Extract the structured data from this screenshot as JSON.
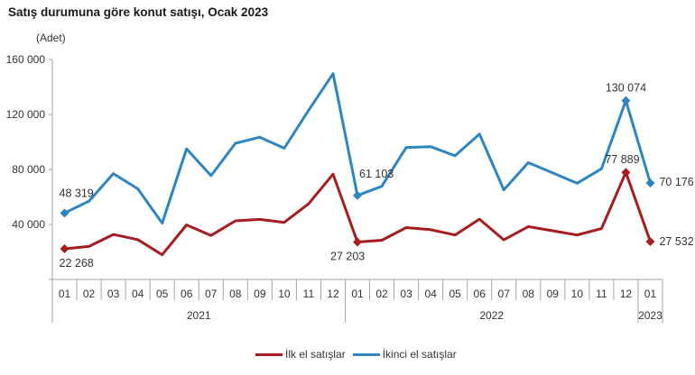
{
  "title": "Satış durumuna göre konut satışı, Ocak 2023",
  "unit_label": "(Adet)",
  "legend": [
    {
      "label": "İlk el satışlar",
      "color": "#a61c1f"
    },
    {
      "label": "İkinci el satışlar",
      "color": "#2e86c1"
    }
  ],
  "chart_data": {
    "type": "line",
    "title": "Satış durumuna göre konut satışı, Ocak 2023",
    "xlabel": "",
    "ylabel": "(Adet)",
    "ylim": [
      0,
      160000
    ],
    "yticks": [
      40000,
      80000,
      120000,
      160000
    ],
    "ytick_labels": [
      "40 000",
      "80 000",
      "120 000",
      "160 000"
    ],
    "grid": false,
    "legend_position": "bottom",
    "categories": [
      "01",
      "02",
      "03",
      "04",
      "05",
      "06",
      "07",
      "08",
      "09",
      "10",
      "11",
      "12",
      "01",
      "02",
      "03",
      "04",
      "05",
      "06",
      "07",
      "08",
      "09",
      "10",
      "11",
      "12",
      "01"
    ],
    "year_groups": [
      {
        "label": "2021",
        "start": 0,
        "count": 12
      },
      {
        "label": "2022",
        "start": 12,
        "count": 12
      },
      {
        "label": "2023",
        "start": 24,
        "count": 1
      }
    ],
    "series": [
      {
        "name": "İlk el satışlar",
        "color": "#a61c1f",
        "values": [
          22268,
          24000,
          32700,
          29000,
          18000,
          39700,
          32000,
          42600,
          43700,
          41500,
          55000,
          76600,
          27203,
          28500,
          37700,
          36200,
          32300,
          43900,
          28800,
          38400,
          35400,
          32300,
          37000,
          77889,
          27532
        ]
      },
      {
        "name": "İkinci el satışlar",
        "color": "#2e86c1",
        "values": [
          48319,
          57000,
          77000,
          66000,
          41000,
          95000,
          75500,
          99000,
          103500,
          95500,
          123000,
          149700,
          61103,
          67800,
          96000,
          96600,
          90000,
          105800,
          65200,
          85000,
          77500,
          70000,
          80500,
          130074,
          70176
        ]
      }
    ],
    "annotations": [
      {
        "series": 1,
        "index": 0,
        "text": "48 319"
      },
      {
        "series": 0,
        "index": 0,
        "text": "22 268"
      },
      {
        "series": 1,
        "index": 12,
        "text": "61 103"
      },
      {
        "series": 0,
        "index": 12,
        "text": "27 203"
      },
      {
        "series": 1,
        "index": 23,
        "text": "130 074"
      },
      {
        "series": 0,
        "index": 23,
        "text": "77 889"
      },
      {
        "series": 1,
        "index": 24,
        "text": "70 176"
      },
      {
        "series": 0,
        "index": 24,
        "text": "27 532"
      }
    ]
  }
}
